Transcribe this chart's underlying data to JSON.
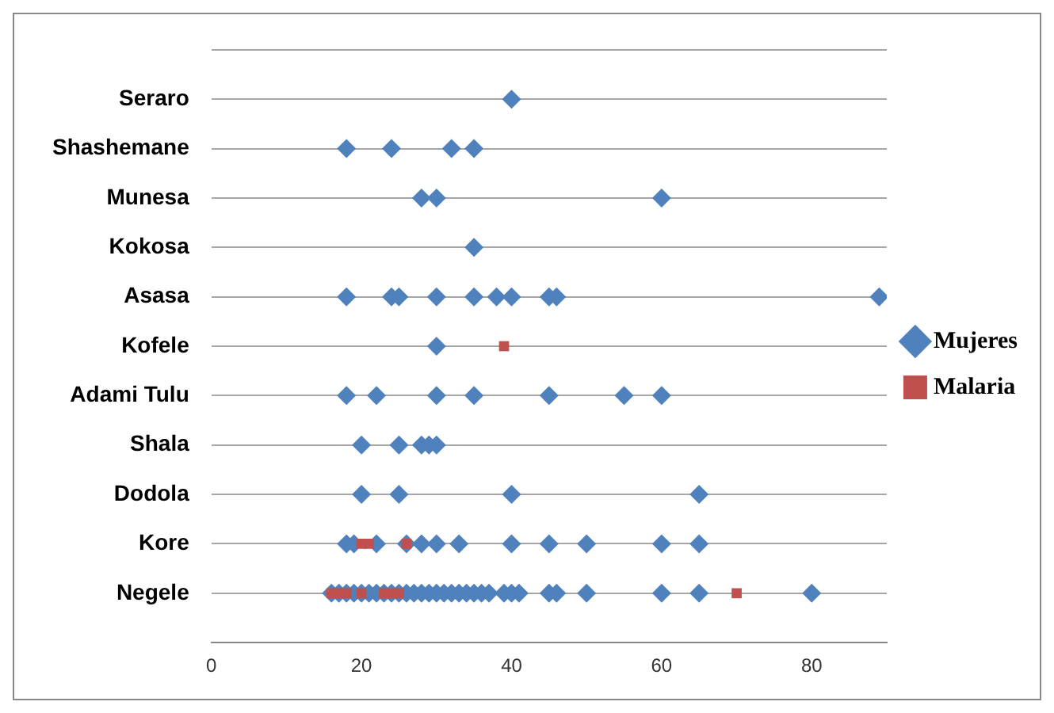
{
  "chart_data": {
    "type": "scatter",
    "orientation": "horizontal",
    "categories": [
      "Seraro",
      "Shashemane",
      "Munesa",
      "Kokosa",
      "Asasa",
      "Kofele",
      "Adami Tulu",
      "Shala",
      "Dodola",
      "Kore",
      "Negele"
    ],
    "xlim": [
      0,
      90
    ],
    "xticks": [
      0,
      20,
      40,
      60,
      80
    ],
    "grid": "y",
    "legend": "right",
    "series": [
      {
        "name": "Mujeres",
        "color": "#4f81bd",
        "marker": "diamond",
        "x": [
          "Seraro",
          "Shashemane",
          "Shashemane",
          "Shashemane",
          "Shashemane",
          "Munesa",
          "Munesa",
          "Munesa",
          "Kokosa",
          "Asasa",
          "Asasa",
          "Asasa",
          "Asasa",
          "Asasa",
          "Asasa",
          "Asasa",
          "Asasa",
          "Asasa",
          "Asasa",
          "Kofele",
          "Adami Tulu",
          "Adami Tulu",
          "Adami Tulu",
          "Adami Tulu",
          "Adami Tulu",
          "Adami Tulu",
          "Adami Tulu",
          "Shala",
          "Shala",
          "Shala",
          "Shala",
          "Shala",
          "Dodola",
          "Dodola",
          "Dodola",
          "Dodola",
          "Kore",
          "Kore",
          "Kore",
          "Kore",
          "Kore",
          "Kore",
          "Kore",
          "Kore",
          "Kore",
          "Kore",
          "Kore",
          "Kore",
          "Negele",
          "Negele",
          "Negele",
          "Negele",
          "Negele",
          "Negele",
          "Negele",
          "Negele",
          "Negele",
          "Negele",
          "Negele",
          "Negele",
          "Negele",
          "Negele",
          "Negele",
          "Negele",
          "Negele",
          "Negele",
          "Negele",
          "Negele",
          "Negele",
          "Negele",
          "Negele",
          "Negele",
          "Negele",
          "Negele",
          "Negele",
          "Negele",
          "Negele",
          "Negele",
          "Negele"
        ],
        "values": [
          40,
          18,
          24,
          32,
          35,
          28,
          30,
          60,
          35,
          18,
          24,
          25,
          30,
          35,
          38,
          40,
          45,
          46,
          89,
          30,
          18,
          22,
          30,
          35,
          45,
          55,
          60,
          20,
          25,
          28,
          29,
          30,
          20,
          25,
          40,
          65,
          18,
          19,
          22,
          26,
          28,
          30,
          33,
          40,
          45,
          50,
          60,
          65,
          16,
          17,
          18,
          19,
          20,
          21,
          22,
          23,
          24,
          25,
          26,
          27,
          28,
          29,
          30,
          31,
          32,
          33,
          34,
          35,
          36,
          37,
          39,
          40,
          41,
          45,
          46,
          50,
          60,
          65,
          80
        ]
      },
      {
        "name": "Malaria",
        "color": "#c0504d",
        "marker": "square",
        "x": [
          "Kofele",
          "Kore",
          "Kore",
          "Kore",
          "Negele",
          "Negele",
          "Negele",
          "Negele",
          "Negele",
          "Negele",
          "Negele",
          "Negele"
        ],
        "values": [
          39,
          20,
          21,
          26,
          16,
          17,
          18,
          20,
          23,
          24,
          25,
          70
        ]
      }
    ]
  }
}
